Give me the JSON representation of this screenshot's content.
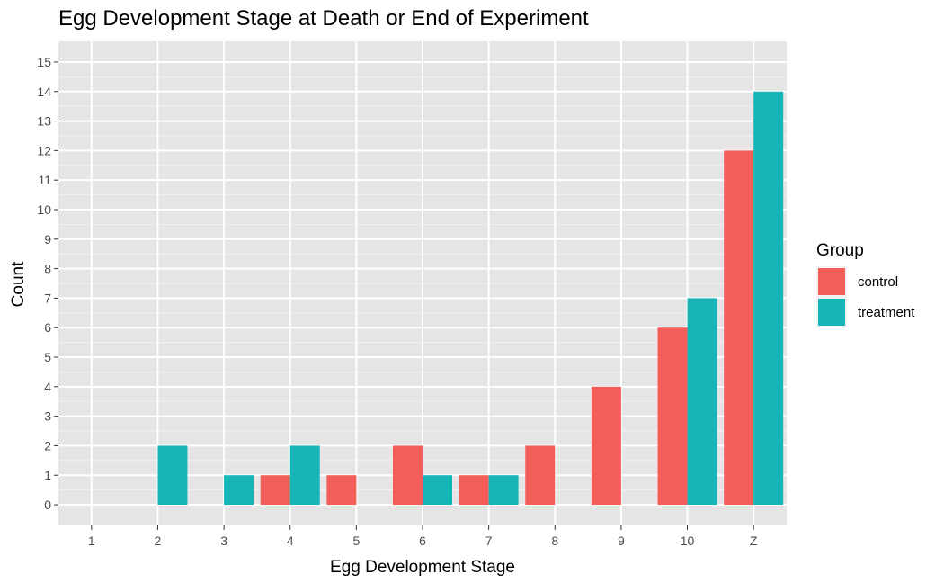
{
  "chart_data": {
    "type": "bar",
    "title": "Egg Development Stage at Death or End of Experiment",
    "xlabel": "Egg Development Stage",
    "ylabel": "Count",
    "categories": [
      "1",
      "2",
      "3",
      "4",
      "5",
      "6",
      "7",
      "8",
      "9",
      "10",
      "Z"
    ],
    "ylim": [
      -0.7,
      15.7
    ],
    "yticks": [
      0,
      1,
      2,
      3,
      4,
      5,
      6,
      7,
      8,
      9,
      10,
      11,
      12,
      13,
      14,
      15
    ],
    "legend": {
      "title": "Group",
      "position": "right"
    },
    "grid": true,
    "panel_background": "#e5e5e5",
    "series": [
      {
        "name": "control",
        "color": "#f35e5a",
        "values": [
          0,
          0,
          0,
          1,
          1,
          2,
          1,
          2,
          4,
          6,
          12
        ]
      },
      {
        "name": "treatment",
        "color": "#17b5b8",
        "values": [
          0,
          2,
          1,
          2,
          0,
          1,
          1,
          0,
          0,
          7,
          14
        ]
      }
    ]
  }
}
